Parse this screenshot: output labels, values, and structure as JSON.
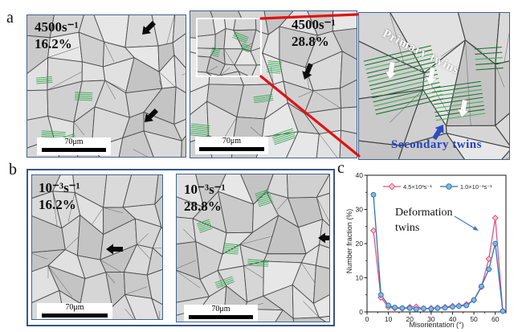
{
  "colors": {
    "panel_border": "#35568b",
    "connector_red": "#e01212",
    "twin_green": "#2fa84d",
    "twin_green_dark": "#15702a",
    "secondary_twins_blue": "#2343b8",
    "annotation_arrow_blue": "#4472c4",
    "series_pink": "#e05582",
    "series_blue": "#2e74b5"
  },
  "panels": {
    "a": {
      "label": "a",
      "micrographs": [
        {
          "strain_rate": "4500s⁻¹",
          "strain": "16.2%",
          "scale_bar": "70μm"
        },
        {
          "strain_rate": "4500s⁻¹",
          "strain": "28.8%",
          "scale_bar": "70μm"
        }
      ],
      "zoom_annotations": {
        "primary": "Primary twins",
        "secondary": "Secondary twins"
      }
    },
    "b": {
      "label": "b",
      "micrographs": [
        {
          "strain_rate": "10⁻³s⁻¹",
          "strain": "16.2%",
          "scale_bar": "70μm"
        },
        {
          "strain_rate": "10⁻³s⁻¹",
          "strain": "28.8%",
          "scale_bar": "70μm"
        }
      ]
    },
    "c": {
      "label": "c",
      "annotation": "Deformation twins"
    }
  },
  "chart_data": {
    "type": "line",
    "x": [
      3,
      6.5,
      10,
      13,
      16.5,
      20,
      23,
      26.5,
      30,
      33,
      36.5,
      40,
      43,
      46.5,
      50,
      53.5,
      57,
      60,
      63.5
    ],
    "series": [
      {
        "name": "4.5×10³s⁻¹",
        "marker": "diamond",
        "line_color": "#e05582",
        "marker_fill": "#f6c3d3",
        "values": [
          23.8,
          4.2,
          1.4,
          1.1,
          1.0,
          1.4,
          1.5,
          1.0,
          1.1,
          1.2,
          1.4,
          1.7,
          1.8,
          2.2,
          3.4,
          7.3,
          15.5,
          27.5,
          0.3
        ]
      },
      {
        "name": "1.0×10⁻³s⁻¹",
        "marker": "circle",
        "line_color": "#2e74b5",
        "marker_fill": "#7fb9e6",
        "values": [
          34.3,
          5.0,
          1.9,
          1.3,
          1.1,
          1.1,
          0.8,
          1.0,
          0.9,
          1.1,
          1.2,
          1.5,
          1.7,
          1.9,
          3.5,
          7.5,
          12.5,
          20.0,
          0.2
        ]
      }
    ],
    "xlabel": "Misorientation (°)",
    "ylabel": "Number fraction (%)",
    "xlim": [
      0,
      65
    ],
    "ylim": [
      0,
      40
    ],
    "xticks": [
      0,
      10,
      20,
      30,
      40,
      50,
      60
    ],
    "yticks": [
      0,
      10,
      20,
      30,
      40
    ],
    "annotation": "Deformation twins",
    "legend_position": "top-center",
    "grid": false
  }
}
